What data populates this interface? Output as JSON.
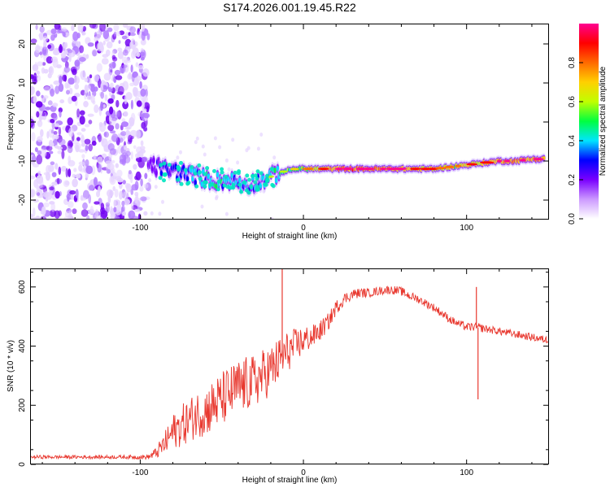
{
  "figure": {
    "title": "S174.2026.001.19.45.R22"
  },
  "chart_data": [
    {
      "type": "heatmap",
      "name": "spectrogram",
      "xlabel": "Height of straight line (km)",
      "ylabel": "Frequency (Hz)",
      "xlim": [
        -167,
        150
      ],
      "ylim": [
        -25,
        25
      ],
      "x_ticks": [
        -100,
        0,
        100
      ],
      "y_ticks": [
        -20,
        -10,
        0,
        10,
        20
      ],
      "noise_region": {
        "x_range": [
          -167,
          -95
        ],
        "y_range": [
          -25,
          25
        ]
      },
      "ridge": {
        "x": [
          -95,
          -85,
          -75,
          -65,
          -55,
          -45,
          -35,
          -25,
          -15,
          -5,
          0,
          10,
          20,
          30,
          40,
          50,
          60,
          70,
          80,
          90,
          100,
          110,
          120,
          130,
          140,
          148
        ],
        "freq": [
          -11,
          -12,
          -13,
          -14,
          -15,
          -15,
          -16,
          -15,
          -13,
          -12,
          -12,
          -12,
          -12,
          -12,
          -12,
          -12,
          -12,
          -12,
          -12,
          -11.5,
          -11,
          -10.5,
          -10,
          -10,
          -9.5,
          -9.5
        ],
        "amplitude": [
          0.2,
          0.25,
          0.35,
          0.4,
          0.45,
          0.4,
          0.35,
          0.4,
          0.5,
          0.6,
          0.65,
          0.75,
          0.85,
          0.95,
          0.95,
          0.9,
          0.85,
          0.8,
          0.75,
          0.7,
          0.75,
          0.8,
          0.85,
          0.9,
          0.9,
          0.9
        ]
      },
      "colorbar": {
        "label": "Normalized spectral amplitude",
        "range": [
          0,
          1
        ],
        "ticks": [
          "0.0",
          "0.2",
          "0.4",
          "0.6",
          "0.8"
        ],
        "tick_values": [
          0,
          0.2,
          0.4,
          0.6,
          0.8
        ],
        "colors": [
          "#ffffff",
          "#cc99ff",
          "#7a00ff",
          "#0000ff",
          "#00e5ff",
          "#00ff40",
          "#c0ff00",
          "#ffd000",
          "#ff6a00",
          "#ff0000",
          "#ff0090"
        ]
      }
    },
    {
      "type": "line",
      "name": "snr",
      "xlabel": "Height of straight line (km)",
      "ylabel": "SNR (10 * v/v)",
      "xlim": [
        -167,
        150
      ],
      "ylim": [
        0,
        660
      ],
      "x_ticks": [
        -100,
        0,
        100
      ],
      "y_ticks": [
        0,
        200,
        400,
        600
      ],
      "color": "#e8382f",
      "x": [
        -167,
        -150,
        -130,
        -110,
        -95,
        -90,
        -85,
        -80,
        -75,
        -70,
        -65,
        -60,
        -55,
        -50,
        -45,
        -40,
        -35,
        -30,
        -25,
        -20,
        -15,
        -10,
        -5,
        0,
        5,
        10,
        15,
        20,
        25,
        30,
        35,
        40,
        45,
        50,
        55,
        60,
        65,
        70,
        75,
        80,
        85,
        90,
        95,
        100,
        105,
        110,
        115,
        120,
        125,
        130,
        135,
        140,
        145,
        150
      ],
      "y": [
        25,
        25,
        25,
        25,
        25,
        40,
        70,
        110,
        130,
        150,
        170,
        180,
        200,
        220,
        240,
        260,
        270,
        280,
        300,
        320,
        350,
        380,
        400,
        420,
        430,
        450,
        480,
        530,
        560,
        575,
        580,
        580,
        585,
        590,
        590,
        585,
        570,
        560,
        545,
        530,
        510,
        490,
        475,
        465,
        465,
        460,
        455,
        450,
        445,
        440,
        435,
        430,
        425,
        420
      ],
      "noise": [
        6,
        6,
        6,
        6,
        8,
        20,
        40,
        60,
        70,
        75,
        80,
        85,
        90,
        95,
        95,
        95,
        95,
        90,
        90,
        85,
        80,
        70,
        60,
        50,
        40,
        35,
        30,
        25,
        20,
        18,
        16,
        15,
        15,
        15,
        15,
        15,
        15,
        14,
        14,
        14,
        14,
        14,
        14,
        14,
        14,
        14,
        13,
        13,
        13,
        13,
        13,
        13,
        13,
        13
      ],
      "spikes": [
        {
          "x": -13,
          "y": 660
        },
        {
          "x": 107,
          "y": 220
        },
        {
          "x": 106,
          "y": 600
        }
      ]
    }
  ]
}
